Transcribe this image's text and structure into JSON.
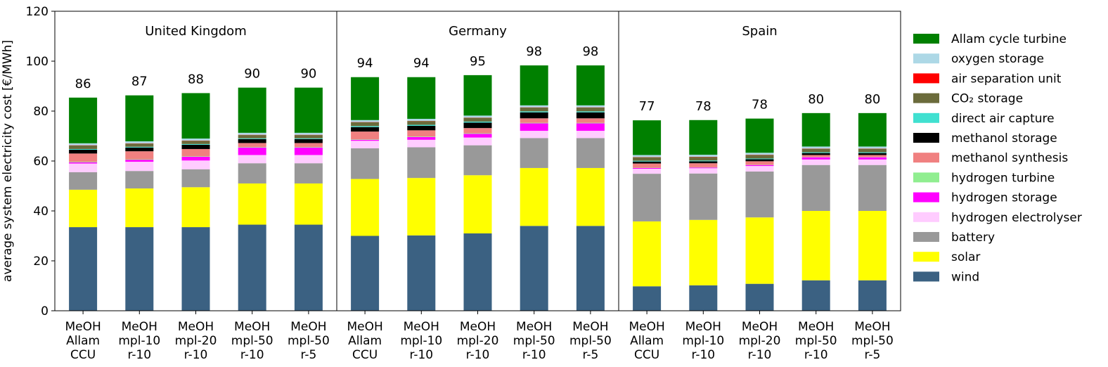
{
  "chart_data": {
    "type": "bar",
    "stacked": true,
    "ylabel": "average system electricity cost [€/MWh]",
    "ylim": [
      0,
      120
    ],
    "yticks": [
      0,
      20,
      40,
      60,
      80,
      100,
      120
    ],
    "grid": false,
    "legend_position": "right",
    "groups": [
      "United Kingdom",
      "Germany",
      "Spain"
    ],
    "categories": [
      [
        "MeOH",
        "Allam",
        "CCU"
      ],
      [
        "MeOH",
        "mpl-10",
        "r-10"
      ],
      [
        "MeOH",
        "mpl-20",
        "r-10"
      ],
      [
        "MeOH",
        "mpl-50",
        "r-10"
      ],
      [
        "MeOH",
        "mpl-50",
        "r-5"
      ]
    ],
    "totals": [
      [
        86,
        87,
        88,
        90,
        90
      ],
      [
        94,
        94,
        95,
        98,
        98
      ],
      [
        77,
        78,
        78,
        80,
        80
      ]
    ],
    "series": [
      {
        "name": "wind",
        "color": "#3b6182",
        "values": [
          [
            33.5,
            33.5,
            33.5,
            34.5,
            34.5
          ],
          [
            30,
            30.2,
            31,
            34,
            34
          ],
          [
            9.8,
            10.2,
            10.8,
            12.2,
            12.2
          ]
        ]
      },
      {
        "name": "solar",
        "color": "#ffff00",
        "values": [
          [
            15,
            15.5,
            16,
            16.5,
            16.5
          ],
          [
            22.8,
            23,
            23.3,
            23.2,
            23.2
          ],
          [
            26,
            26.2,
            26.6,
            27.8,
            27.8
          ]
        ]
      },
      {
        "name": "battery",
        "color": "#999999",
        "values": [
          [
            7,
            7,
            7.2,
            8.1,
            8.1
          ],
          [
            12.3,
            12.3,
            12,
            12,
            12
          ],
          [
            19.1,
            18.6,
            18.4,
            18.4,
            18.4
          ]
        ]
      },
      {
        "name": "hydrogen electrolyser",
        "color": "#ffccff",
        "values": [
          [
            3.5,
            3.7,
            3.5,
            3.3,
            3.3
          ],
          [
            3,
            3,
            3.1,
            2.9,
            2.9
          ],
          [
            2,
            2.1,
            2.2,
            2.2,
            2.2
          ]
        ]
      },
      {
        "name": "hydrogen storage",
        "color": "#ff00ff",
        "values": [
          [
            0.5,
            0.8,
            1.5,
            3,
            3
          ],
          [
            0.4,
            1.1,
            1.5,
            3,
            3
          ],
          [
            0.3,
            0.3,
            0.4,
            0.9,
            0.9
          ]
        ]
      },
      {
        "name": "hydrogen turbine",
        "color": "#90ee90",
        "values": [
          [
            0.2,
            0.2,
            0.2,
            0.2,
            0.2
          ],
          [
            0.2,
            0.2,
            0.2,
            0.2,
            0.2
          ],
          [
            0.1,
            0.1,
            0.1,
            0.1,
            0.1
          ]
        ]
      },
      {
        "name": "methanol synthesis",
        "color": "#f08080",
        "values": [
          [
            3.3,
            3.2,
            2.9,
            1.6,
            1.6
          ],
          [
            3.1,
            2.5,
            2.1,
            1.8,
            1.8
          ],
          [
            1.7,
            1.6,
            1.4,
            0.8,
            0.8
          ]
        ]
      },
      {
        "name": "methanol storage",
        "color": "#000000",
        "values": [
          [
            1.5,
            1.5,
            1.7,
            1.6,
            1.6
          ],
          [
            1.8,
            1.8,
            2.2,
            2.4,
            2.4
          ],
          [
            0.8,
            0.8,
            0.8,
            0.8,
            0.8
          ]
        ]
      },
      {
        "name": "direct air capture",
        "color": "#40e0d0",
        "values": [
          [
            0.3,
            0.3,
            0.3,
            0.3,
            0.3
          ],
          [
            0.4,
            0.4,
            0.4,
            0.4,
            0.4
          ],
          [
            0.3,
            0.3,
            0.3,
            0.3,
            0.3
          ]
        ]
      },
      {
        "name": "CO₂ storage",
        "color": "#6b6b3b",
        "values": [
          [
            1.4,
            1.3,
            1.3,
            1.3,
            1.3
          ],
          [
            1.5,
            1.5,
            1.5,
            1.5,
            1.5
          ],
          [
            1.4,
            1.4,
            1.4,
            1.4,
            1.4
          ]
        ]
      },
      {
        "name": "air separation unit",
        "color": "#ff0000",
        "values": [
          [
            0.1,
            0.1,
            0.1,
            0.1,
            0.1
          ],
          [
            0.1,
            0.1,
            0.1,
            0.1,
            0.1
          ],
          [
            0.1,
            0.1,
            0.1,
            0.1,
            0.1
          ]
        ]
      },
      {
        "name": "oxygen storage",
        "color": "#add8e6",
        "values": [
          [
            0.8,
            0.8,
            0.8,
            0.8,
            0.8
          ],
          [
            0.8,
            0.8,
            0.8,
            0.8,
            0.8
          ],
          [
            0.8,
            0.8,
            0.8,
            0.8,
            0.8
          ]
        ]
      },
      {
        "name": "Allam cycle turbine",
        "color": "#008000",
        "values": [
          [
            18.3,
            18.4,
            18.2,
            18.1,
            18.1
          ],
          [
            17.2,
            16.7,
            16.2,
            16,
            16
          ],
          [
            13.9,
            13.9,
            13.7,
            13.4,
            13.4
          ]
        ]
      }
    ],
    "legend_order": [
      "Allam cycle turbine",
      "oxygen storage",
      "air separation unit",
      "CO₂ storage",
      "direct air capture",
      "methanol storage",
      "methanol synthesis",
      "hydrogen turbine",
      "hydrogen storage",
      "hydrogen electrolyser",
      "battery",
      "solar",
      "wind"
    ]
  }
}
